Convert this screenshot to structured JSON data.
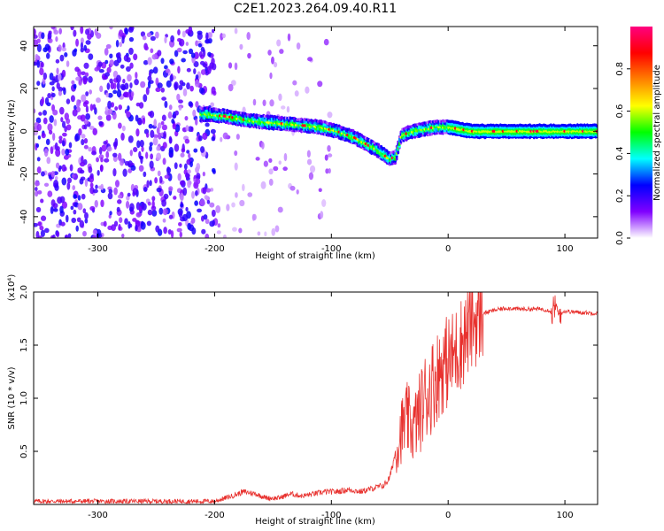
{
  "title": "C2E1.2023.264.09.40.R11",
  "chart_data": [
    {
      "type": "heatmap",
      "xlabel": "Height of straight line (km)",
      "ylabel": "Frequency (Hz)",
      "xlim": [
        -355,
        128
      ],
      "ylim": [
        -50,
        49
      ],
      "x_ticks": [
        -300,
        -200,
        -100,
        0,
        100
      ],
      "y_ticks": [
        -40,
        -20,
        0,
        20,
        40
      ],
      "colorbar": {
        "label": "Normalized spectral amplitude",
        "range": [
          0.0,
          1.0
        ],
        "ticks": [
          "0.0",
          "0.2",
          "0.4",
          "0.6",
          "0.8"
        ],
        "colors": [
          "#ffffff",
          "#8000ff",
          "#0000ff",
          "#00ffff",
          "#00ff00",
          "#ffff00",
          "#ff8000",
          "#ff0000",
          "#ff0080"
        ]
      },
      "ridge": {
        "x": [
          -210,
          -190,
          -170,
          -150,
          -130,
          -110,
          -95,
          -80,
          -70,
          -60,
          -55,
          -50,
          -45,
          -40,
          -30,
          -20,
          -10,
          0,
          20,
          50,
          80,
          128
        ],
        "y": [
          8,
          7,
          5,
          4,
          3,
          2,
          0,
          -3,
          -6,
          -9,
          -11,
          -13,
          -12,
          -2,
          0,
          1,
          2,
          2,
          0,
          0,
          0,
          0
        ]
      }
    },
    {
      "type": "line",
      "xlabel": "Height of straight line (km)",
      "ylabel": "SNR (10 * v/v)",
      "yscale_note": "(x10⁴)",
      "xlim": [
        -355,
        128
      ],
      "ylim": [
        0.0,
        2.0
      ],
      "x_ticks": [
        -300,
        -200,
        -100,
        0,
        100
      ],
      "y_ticks": [
        "0.5",
        "1.0",
        "1.5",
        "2.0"
      ],
      "color": "#e8312e",
      "series": [
        {
          "x": [
            -355,
            -300,
            -250,
            -200,
            -185,
            -175,
            -165,
            -155,
            -145,
            -135,
            -125,
            -115,
            -105,
            -95,
            -85,
            -75,
            -65,
            -55,
            -50,
            -45,
            -40,
            -35,
            -30,
            -25,
            -20,
            -15,
            -10,
            -5,
            0,
            5,
            10,
            15,
            20,
            25,
            30,
            40,
            50,
            60,
            70,
            80,
            90,
            95,
            100,
            110,
            128
          ],
          "y": [
            0.03,
            0.03,
            0.03,
            0.03,
            0.08,
            0.12,
            0.1,
            0.06,
            0.06,
            0.1,
            0.08,
            0.1,
            0.12,
            0.12,
            0.14,
            0.12,
            0.15,
            0.18,
            0.25,
            0.5,
            0.7,
            0.8,
            0.7,
            0.85,
            1.0,
            1.1,
            1.2,
            1.3,
            1.35,
            1.4,
            1.5,
            1.6,
            1.7,
            1.75,
            1.8,
            1.83,
            1.85,
            1.84,
            1.84,
            1.84,
            1.82,
            1.8,
            1.82,
            1.81,
            1.8
          ]
        }
      ]
    }
  ]
}
